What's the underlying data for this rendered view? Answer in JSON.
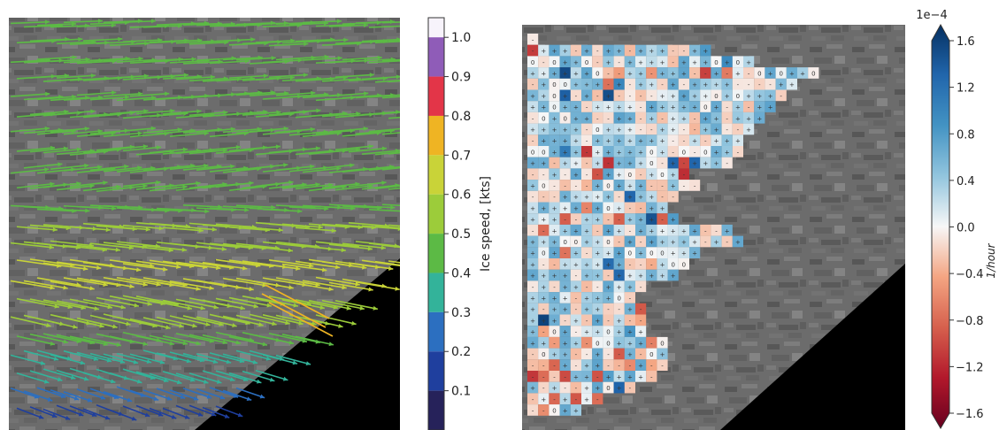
{
  "chart_data": [
    {
      "type": "vector_field",
      "colorbar": {
        "label": "Ice speed, [kts]",
        "ticks": [
          "0.1",
          "0.2",
          "0.3",
          "0.4",
          "0.5",
          "0.6",
          "0.7",
          "0.8",
          "0.9",
          "1.0"
        ],
        "bins": [
          {
            "from": 0.0,
            "to": 0.1,
            "color": "#26225a"
          },
          {
            "from": 0.1,
            "to": 0.2,
            "color": "#1f3f9e"
          },
          {
            "from": 0.2,
            "to": 0.3,
            "color": "#2c6fc0"
          },
          {
            "from": 0.3,
            "to": 0.4,
            "color": "#33b39a"
          },
          {
            "from": 0.4,
            "to": 0.5,
            "color": "#5cba45"
          },
          {
            "from": 0.5,
            "to": 0.6,
            "color": "#9ccc3a"
          },
          {
            "from": 0.6,
            "to": 0.7,
            "color": "#c9d338"
          },
          {
            "from": 0.7,
            "to": 0.8,
            "color": "#efb423"
          },
          {
            "from": 0.8,
            "to": 0.9,
            "color": "#e33548"
          },
          {
            "from": 0.9,
            "to": 1.0,
            "color": "#8f5cb8"
          },
          {
            "from": 1.0,
            "to": 1.05,
            "color": "#f7f3fb"
          }
        ]
      },
      "speed_rows": [
        0.45,
        0.46,
        0.47,
        0.45,
        0.46,
        0.44,
        0.45,
        0.43,
        0.44,
        0.42,
        0.46,
        0.5,
        0.58,
        0.62,
        0.61,
        0.57,
        0.52,
        0.45,
        0.36,
        0.3,
        0.2,
        0.16
      ]
    },
    {
      "type": "heatmap",
      "colorbar": {
        "label": "1/hour",
        "scale_label": "1e−4",
        "ticks": [
          "1.6",
          "1.2",
          "0.8",
          "0.4",
          "0.0",
          "−0.4",
          "−0.8",
          "−1.2",
          "−1.6"
        ],
        "range": [
          -1.6,
          1.6
        ],
        "cmap": "RdBu"
      },
      "cell_markers": {
        "positive": "+",
        "negative": "-",
        "zero": "0"
      },
      "row_spans": [
        [
          0,
          1
        ],
        [
          0,
          17
        ],
        [
          0,
          21
        ],
        [
          0,
          27
        ],
        [
          0,
          25
        ],
        [
          0,
          24
        ],
        [
          0,
          23
        ],
        [
          0,
          22
        ],
        [
          0,
          21
        ],
        [
          0,
          20
        ],
        [
          0,
          20
        ],
        [
          0,
          19
        ],
        [
          0,
          15
        ],
        [
          0,
          16
        ],
        [
          0,
          14
        ],
        [
          0,
          13
        ],
        [
          0,
          14
        ],
        [
          0,
          19
        ],
        [
          0,
          20
        ],
        [
          0,
          16
        ],
        [
          0,
          15
        ],
        [
          0,
          14
        ],
        [
          0,
          11
        ],
        [
          0,
          10
        ],
        [
          0,
          11
        ],
        [
          0,
          11
        ],
        [
          0,
          11
        ],
        [
          0,
          13
        ],
        [
          0,
          13
        ],
        [
          0,
          13
        ],
        [
          0,
          12
        ],
        [
          0,
          10
        ],
        [
          0,
          7
        ],
        [
          0,
          5
        ]
      ]
    }
  ]
}
